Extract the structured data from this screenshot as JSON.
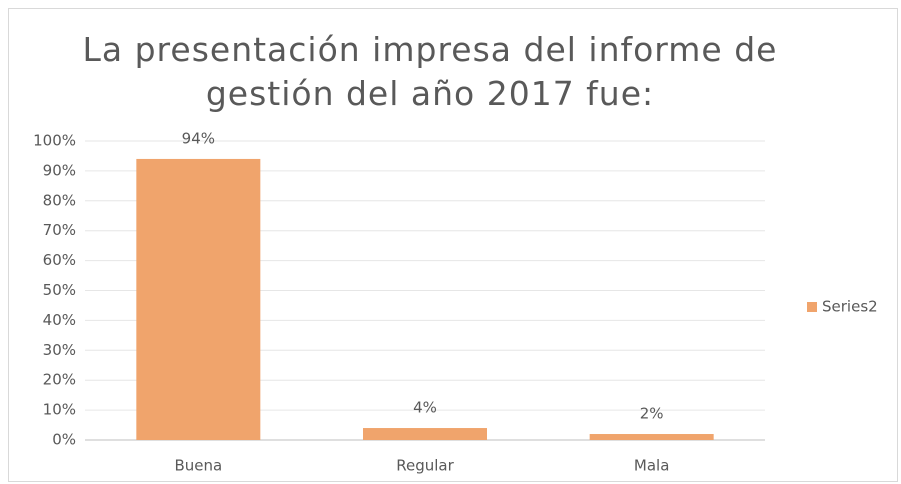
{
  "chart_data": {
    "type": "bar",
    "title": "La presentación impresa del informe de gestión del año 2017 fue:",
    "categories": [
      "Buena",
      "Regular",
      "Mala"
    ],
    "series": [
      {
        "name": "Series2",
        "color": "#f0a46c",
        "values": [
          94,
          4,
          2
        ],
        "value_labels": [
          "94%",
          "4%",
          "2%"
        ]
      }
    ],
    "ylim": [
      0,
      100
    ],
    "yticks": [
      {
        "value": 0,
        "label": "0%"
      },
      {
        "value": 10,
        "label": "10%"
      },
      {
        "value": 20,
        "label": "20%"
      },
      {
        "value": 30,
        "label": "30%"
      },
      {
        "value": 40,
        "label": "40%"
      },
      {
        "value": 50,
        "label": "50%"
      },
      {
        "value": 60,
        "label": "60%"
      },
      {
        "value": 70,
        "label": "70%"
      },
      {
        "value": 80,
        "label": "80%"
      },
      {
        "value": 90,
        "label": "90%"
      },
      {
        "value": 100,
        "label": "100%"
      }
    ],
    "grid": true,
    "legend": "right"
  }
}
